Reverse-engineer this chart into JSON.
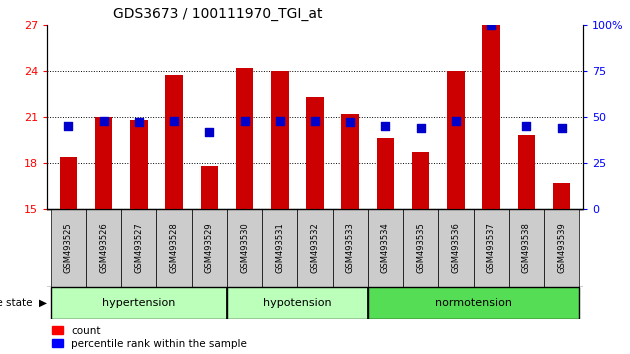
{
  "title": "GDS3673 / 100111970_TGI_at",
  "samples": [
    "GSM493525",
    "GSM493526",
    "GSM493527",
    "GSM493528",
    "GSM493529",
    "GSM493530",
    "GSM493531",
    "GSM493532",
    "GSM493533",
    "GSM493534",
    "GSM493535",
    "GSM493536",
    "GSM493537",
    "GSM493538",
    "GSM493539"
  ],
  "counts": [
    18.4,
    21.0,
    20.8,
    23.7,
    17.8,
    24.2,
    24.0,
    22.3,
    21.2,
    19.6,
    18.7,
    24.0,
    27.0,
    19.8,
    16.7
  ],
  "percentile": [
    45,
    48,
    47,
    48,
    42,
    48,
    48,
    48,
    47,
    45,
    44,
    48,
    100,
    45,
    44
  ],
  "ylim_left": [
    15,
    27
  ],
  "ylim_right": [
    0,
    100
  ],
  "yticks_left": [
    15,
    18,
    21,
    24,
    27
  ],
  "yticks_right": [
    0,
    25,
    50,
    75,
    100
  ],
  "bar_color": "#cc0000",
  "dot_color": "#0000cc",
  "bar_width": 0.5,
  "dot_size": 30,
  "sample_bg_color": "#cccccc",
  "group_data": [
    {
      "label": "hypertension",
      "start": 0,
      "end": 4,
      "color": "#bbffbb"
    },
    {
      "label": "hypotension",
      "start": 5,
      "end": 8,
      "color": "#bbffbb"
    },
    {
      "label": "normotension",
      "start": 9,
      "end": 14,
      "color": "#55dd55"
    }
  ],
  "group_seps": [
    4.5,
    8.5
  ]
}
